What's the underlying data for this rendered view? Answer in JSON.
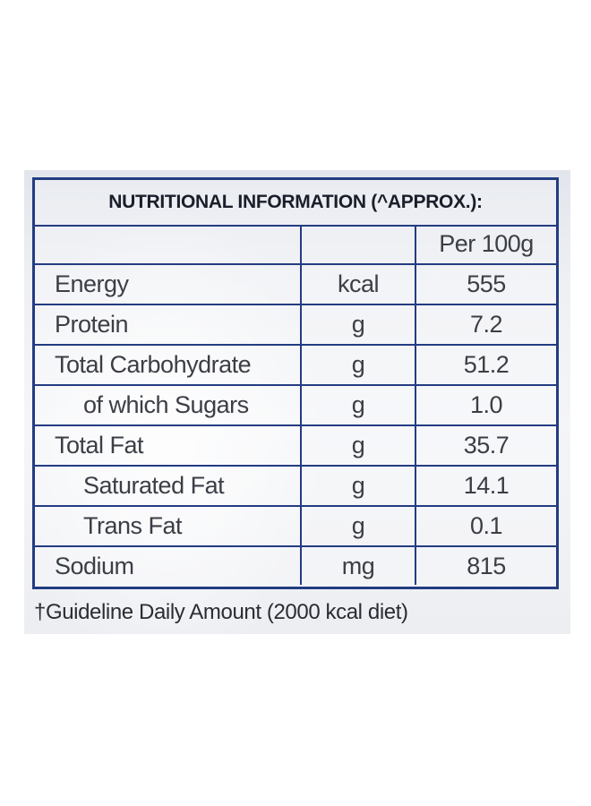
{
  "title": "NUTRITIONAL INFORMATION (^APPROX.):",
  "header": {
    "nutrient": "",
    "unit": "",
    "value": "Per 100g"
  },
  "rows": [
    {
      "nutrient": "Energy",
      "unit": "kcal",
      "value": "555"
    },
    {
      "nutrient": "Protein",
      "unit": "g",
      "value": "7.2"
    },
    {
      "nutrient": "Total Carbohydrate",
      "unit": "g",
      "value": "51.2"
    },
    {
      "nutrient": "of which Sugars",
      "unit": "g",
      "value": "1.0"
    },
    {
      "nutrient": "Total Fat",
      "unit": "g",
      "value": "35.7"
    },
    {
      "nutrient": "Saturated Fat",
      "unit": "g",
      "value": "14.1"
    },
    {
      "nutrient": "Trans Fat",
      "unit": "g",
      "value": "0.1"
    },
    {
      "nutrient": "Sodium",
      "unit": "mg",
      "value": "815"
    }
  ],
  "footnote": "†Guideline Daily Amount (2000 kcal diet)",
  "colors": {
    "border": "#233c82",
    "text": "#3c3e46"
  }
}
